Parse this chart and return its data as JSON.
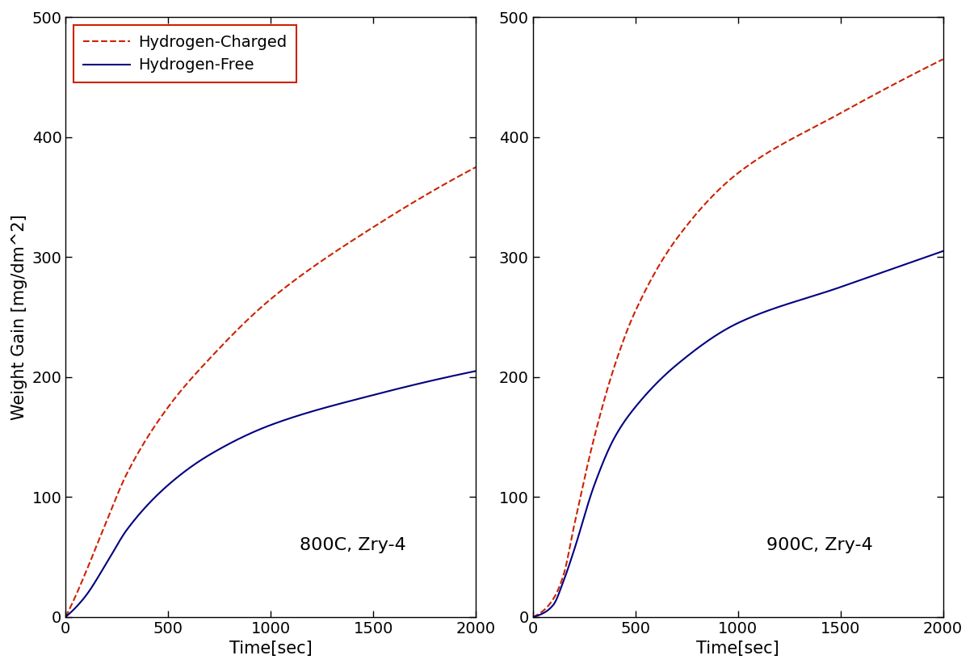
{
  "xlim": [
    0,
    2000
  ],
  "ylim": [
    0,
    500
  ],
  "xticks": [
    0,
    500,
    1000,
    1500,
    2000
  ],
  "yticks": [
    0,
    100,
    200,
    300,
    400,
    500
  ],
  "xlabel": "Time[sec]",
  "ylabel": "Weight Gain [mg/dm^2]",
  "legend_labels": [
    "Hydrogen-Charged",
    "Hydrogen-Free"
  ],
  "panel_labels": [
    "800C, Zry-4",
    "900C, Zry-4"
  ],
  "hcharged_color": "#cc2200",
  "hfree_color": "#000080",
  "background_color": "#ffffff",
  "label_fontsize": 15,
  "tick_fontsize": 14,
  "legend_fontsize": 14,
  "annot_fontsize": 16,
  "curves_800": {
    "hc": {
      "pts_t": [
        0,
        50,
        100,
        200,
        300,
        500,
        700,
        1000,
        1500,
        2000
      ],
      "pts_y": [
        0,
        18,
        38,
        80,
        120,
        175,
        215,
        265,
        325,
        375
      ]
    },
    "hf": {
      "pts_t": [
        0,
        50,
        100,
        200,
        300,
        500,
        700,
        1000,
        1500,
        2000
      ],
      "pts_y": [
        0,
        8,
        18,
        45,
        73,
        110,
        135,
        160,
        185,
        205
      ]
    }
  },
  "curves_900": {
    "hc": {
      "pts_t": [
        0,
        50,
        100,
        150,
        200,
        300,
        400,
        500,
        700,
        1000,
        1500,
        2000
      ],
      "pts_y": [
        0,
        5,
        15,
        35,
        75,
        150,
        210,
        255,
        315,
        370,
        420,
        465
      ]
    },
    "hf": {
      "pts_t": [
        0,
        50,
        100,
        150,
        200,
        300,
        400,
        500,
        700,
        1000,
        1500,
        2000
      ],
      "pts_y": [
        0,
        3,
        10,
        30,
        55,
        110,
        150,
        175,
        210,
        245,
        275,
        305
      ]
    }
  }
}
